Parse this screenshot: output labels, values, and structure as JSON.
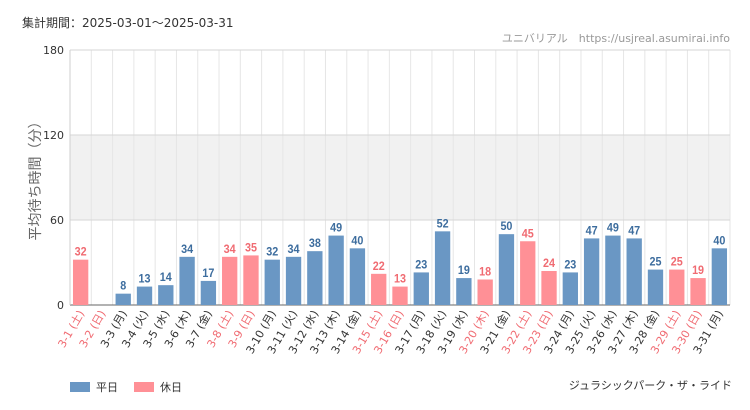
{
  "header": {
    "period": "集計期間：2025-03-01～2025-03-31",
    "site": "ユニバリアル　https://usjreal.asumirai.info",
    "attraction": "ジュラシックパーク・ザ・ライド"
  },
  "legend": {
    "weekday": "平日",
    "holiday": "休日"
  },
  "colors": {
    "weekday": "#6a97c4",
    "holiday": "#ff9096",
    "holiday_text": "#f06b72",
    "weekday_text": "#3d6d9e"
  },
  "chart_data": {
    "type": "bar",
    "ylabel": "平均待ち時間（分）",
    "ylim": [
      0,
      180
    ],
    "yticks": [
      0,
      60,
      120,
      180
    ],
    "grid": true,
    "shaded_band": [
      60,
      120
    ],
    "legend_position": "bottom-left",
    "categories": [
      "3-1 (土)",
      "3-2 (日)",
      "3-3 (月)",
      "3-4 (火)",
      "3-5 (水)",
      "3-6 (木)",
      "3-7 (金)",
      "3-8 (土)",
      "3-9 (日)",
      "3-10 (月)",
      "3-11 (火)",
      "3-12 (水)",
      "3-13 (木)",
      "3-14 (金)",
      "3-15 (土)",
      "3-16 (日)",
      "3-17 (月)",
      "3-18 (火)",
      "3-19 (水)",
      "3-20 (木)",
      "3-21 (金)",
      "3-22 (土)",
      "3-23 (日)",
      "3-24 (月)",
      "3-25 (火)",
      "3-26 (水)",
      "3-27 (木)",
      "3-28 (金)",
      "3-29 (土)",
      "3-30 (日)",
      "3-31 (月)"
    ],
    "values": [
      32,
      0,
      8,
      13,
      14,
      34,
      17,
      34,
      35,
      32,
      34,
      38,
      49,
      40,
      22,
      13,
      23,
      52,
      19,
      18,
      50,
      45,
      24,
      23,
      47,
      49,
      47,
      25,
      25,
      19,
      40
    ],
    "show_label": [
      true,
      false,
      true,
      true,
      true,
      true,
      true,
      true,
      true,
      true,
      true,
      true,
      true,
      true,
      true,
      true,
      true,
      true,
      true,
      true,
      true,
      true,
      true,
      true,
      true,
      true,
      true,
      true,
      true,
      true,
      true
    ],
    "day_type": [
      "holiday",
      "holiday",
      "weekday",
      "weekday",
      "weekday",
      "weekday",
      "weekday",
      "holiday",
      "holiday",
      "weekday",
      "weekday",
      "weekday",
      "weekday",
      "weekday",
      "holiday",
      "holiday",
      "weekday",
      "weekday",
      "weekday",
      "holiday",
      "weekday",
      "holiday",
      "holiday",
      "weekday",
      "weekday",
      "weekday",
      "weekday",
      "weekday",
      "holiday",
      "holiday",
      "weekday"
    ]
  }
}
